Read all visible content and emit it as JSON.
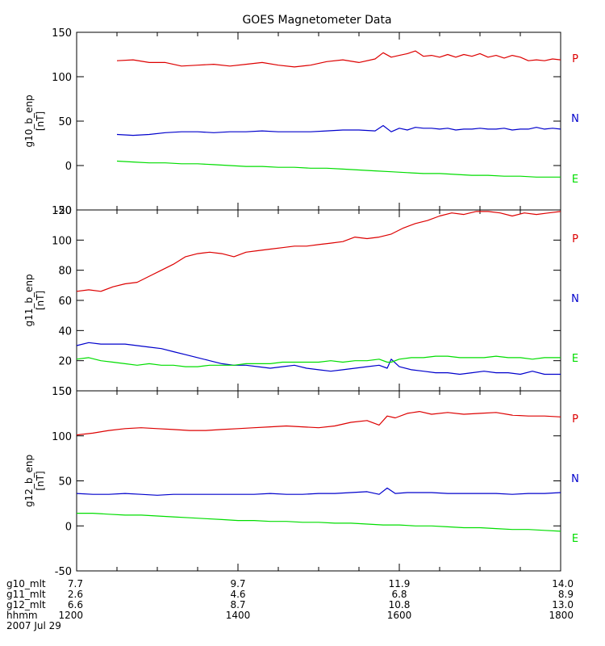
{
  "title": "GOES Magnetometer Data",
  "colors": {
    "P": "#dd0000",
    "N": "#0000cc",
    "E": "#00dd00",
    "axis": "#000000"
  },
  "chart_data": [
    {
      "type": "line",
      "ylabel": "g10_b_enp",
      "yunit": "[nT]",
      "ylim": [
        -50,
        150
      ],
      "yticks": [
        -50,
        0,
        50,
        100,
        150
      ],
      "xlim": [
        1200,
        1800
      ],
      "legend": [
        "P",
        "N",
        "E"
      ],
      "series": [
        {
          "name": "P",
          "color": "#dd0000",
          "x": [
            1250,
            1270,
            1290,
            1310,
            1330,
            1350,
            1370,
            1390,
            1410,
            1430,
            1450,
            1470,
            1490,
            1510,
            1530,
            1550,
            1570,
            1580,
            1590,
            1600,
            1610,
            1620,
            1630,
            1640,
            1650,
            1660,
            1670,
            1680,
            1690,
            1700,
            1710,
            1720,
            1730,
            1740,
            1750,
            1760,
            1770,
            1780,
            1790,
            1800
          ],
          "y": [
            118,
            119,
            116,
            116,
            112,
            113,
            114,
            112,
            114,
            116,
            113,
            111,
            113,
            117,
            119,
            116,
            120,
            127,
            122,
            124,
            126,
            129,
            123,
            124,
            122,
            125,
            122,
            125,
            123,
            126,
            122,
            124,
            121,
            124,
            122,
            118,
            119,
            118,
            120,
            119
          ]
        },
        {
          "name": "N",
          "color": "#0000cc",
          "x": [
            1250,
            1270,
            1290,
            1310,
            1330,
            1350,
            1370,
            1390,
            1410,
            1430,
            1450,
            1470,
            1490,
            1510,
            1530,
            1550,
            1570,
            1580,
            1590,
            1600,
            1610,
            1620,
            1630,
            1640,
            1650,
            1660,
            1670,
            1680,
            1690,
            1700,
            1710,
            1720,
            1730,
            1740,
            1750,
            1760,
            1770,
            1780,
            1790,
            1800
          ],
          "y": [
            35,
            34,
            35,
            37,
            38,
            38,
            37,
            38,
            38,
            39,
            38,
            38,
            38,
            39,
            40,
            40,
            39,
            45,
            38,
            42,
            40,
            43,
            42,
            42,
            41,
            42,
            40,
            41,
            41,
            42,
            41,
            41,
            42,
            40,
            41,
            41,
            43,
            41,
            42,
            41
          ]
        },
        {
          "name": "E",
          "color": "#00dd00",
          "x": [
            1250,
            1270,
            1290,
            1310,
            1330,
            1350,
            1370,
            1390,
            1410,
            1430,
            1450,
            1470,
            1490,
            1510,
            1530,
            1550,
            1570,
            1590,
            1610,
            1630,
            1650,
            1670,
            1690,
            1710,
            1730,
            1750,
            1770,
            1790,
            1800
          ],
          "y": [
            5,
            4,
            3,
            3,
            2,
            2,
            1,
            0,
            -1,
            -1,
            -2,
            -2,
            -3,
            -3,
            -4,
            -5,
            -6,
            -7,
            -8,
            -9,
            -9,
            -10,
            -11,
            -11,
            -12,
            -12,
            -13,
            -13,
            -13
          ]
        }
      ]
    },
    {
      "type": "line",
      "ylabel": "g11_b_enp",
      "yunit": "[nT]",
      "ylim": [
        0,
        120
      ],
      "yticks": [
        0,
        20,
        40,
        60,
        80,
        100,
        120
      ],
      "xlim": [
        1200,
        1800
      ],
      "legend": [
        "P",
        "N",
        "E"
      ],
      "series": [
        {
          "name": "P",
          "color": "#dd0000",
          "x": [
            1200,
            1215,
            1230,
            1245,
            1260,
            1275,
            1290,
            1305,
            1320,
            1335,
            1350,
            1365,
            1380,
            1395,
            1410,
            1425,
            1440,
            1455,
            1470,
            1485,
            1500,
            1515,
            1530,
            1545,
            1560,
            1575,
            1590,
            1605,
            1620,
            1635,
            1650,
            1665,
            1680,
            1695,
            1710,
            1725,
            1740,
            1755,
            1770,
            1785,
            1800
          ],
          "y": [
            66,
            67,
            66,
            69,
            71,
            72,
            76,
            80,
            84,
            89,
            91,
            92,
            91,
            89,
            92,
            93,
            94,
            95,
            96,
            96,
            97,
            98,
            99,
            102,
            101,
            102,
            104,
            108,
            111,
            113,
            116,
            118,
            117,
            119,
            119,
            118,
            116,
            118,
            117,
            118,
            119
          ]
        },
        {
          "name": "N",
          "color": "#0000cc",
          "x": [
            1200,
            1215,
            1230,
            1245,
            1260,
            1275,
            1290,
            1305,
            1320,
            1335,
            1350,
            1365,
            1380,
            1395,
            1410,
            1425,
            1440,
            1455,
            1470,
            1485,
            1500,
            1515,
            1530,
            1545,
            1560,
            1575,
            1585,
            1590,
            1600,
            1615,
            1630,
            1645,
            1660,
            1675,
            1690,
            1705,
            1720,
            1735,
            1750,
            1765,
            1780,
            1800
          ],
          "y": [
            30,
            32,
            31,
            31,
            31,
            30,
            29,
            28,
            26,
            24,
            22,
            20,
            18,
            17,
            17,
            16,
            15,
            16,
            17,
            15,
            14,
            13,
            14,
            15,
            16,
            17,
            15,
            21,
            16,
            14,
            13,
            12,
            12,
            11,
            12,
            13,
            12,
            12,
            11,
            13,
            11,
            11
          ]
        },
        {
          "name": "E",
          "color": "#00dd00",
          "x": [
            1200,
            1215,
            1230,
            1245,
            1260,
            1275,
            1290,
            1305,
            1320,
            1335,
            1350,
            1365,
            1380,
            1395,
            1410,
            1425,
            1440,
            1455,
            1470,
            1485,
            1500,
            1515,
            1530,
            1545,
            1560,
            1575,
            1585,
            1590,
            1600,
            1615,
            1630,
            1645,
            1660,
            1675,
            1690,
            1705,
            1720,
            1735,
            1750,
            1765,
            1780,
            1800
          ],
          "y": [
            21,
            22,
            20,
            19,
            18,
            17,
            18,
            17,
            17,
            16,
            16,
            17,
            17,
            17,
            18,
            18,
            18,
            19,
            19,
            19,
            19,
            20,
            19,
            20,
            20,
            21,
            19,
            19,
            21,
            22,
            22,
            23,
            23,
            22,
            22,
            22,
            23,
            22,
            22,
            21,
            22,
            22
          ]
        }
      ]
    },
    {
      "type": "line",
      "ylabel": "g12_b_enp",
      "yunit": "[nT]",
      "ylim": [
        -50,
        150
      ],
      "yticks": [
        -50,
        0,
        50,
        100,
        150
      ],
      "xlim": [
        1200,
        1800
      ],
      "legend": [
        "P",
        "N",
        "E"
      ],
      "series": [
        {
          "name": "P",
          "color": "#dd0000",
          "x": [
            1200,
            1220,
            1240,
            1260,
            1280,
            1300,
            1320,
            1340,
            1360,
            1380,
            1400,
            1420,
            1440,
            1460,
            1480,
            1500,
            1520,
            1540,
            1560,
            1575,
            1585,
            1595,
            1610,
            1625,
            1640,
            1660,
            1680,
            1700,
            1720,
            1740,
            1760,
            1780,
            1800
          ],
          "y": [
            101,
            103,
            106,
            108,
            109,
            108,
            107,
            106,
            106,
            107,
            108,
            109,
            110,
            111,
            110,
            109,
            111,
            115,
            117,
            112,
            122,
            120,
            125,
            127,
            124,
            126,
            124,
            125,
            126,
            123,
            122,
            122,
            121
          ]
        },
        {
          "name": "N",
          "color": "#0000cc",
          "x": [
            1200,
            1220,
            1240,
            1260,
            1280,
            1300,
            1320,
            1340,
            1360,
            1380,
            1400,
            1420,
            1440,
            1460,
            1480,
            1500,
            1520,
            1540,
            1560,
            1575,
            1585,
            1595,
            1610,
            1625,
            1640,
            1660,
            1680,
            1700,
            1720,
            1740,
            1760,
            1780,
            1800
          ],
          "y": [
            36,
            35,
            35,
            36,
            35,
            34,
            35,
            35,
            35,
            35,
            35,
            35,
            36,
            35,
            35,
            36,
            36,
            37,
            38,
            35,
            42,
            36,
            37,
            37,
            37,
            36,
            36,
            36,
            36,
            35,
            36,
            36,
            37
          ]
        },
        {
          "name": "E",
          "color": "#00dd00",
          "x": [
            1200,
            1220,
            1240,
            1260,
            1280,
            1300,
            1320,
            1340,
            1360,
            1380,
            1400,
            1420,
            1440,
            1460,
            1480,
            1500,
            1520,
            1540,
            1560,
            1580,
            1600,
            1620,
            1640,
            1660,
            1680,
            1700,
            1720,
            1740,
            1760,
            1780,
            1800
          ],
          "y": [
            14,
            14,
            13,
            12,
            12,
            11,
            10,
            9,
            8,
            7,
            6,
            6,
            5,
            5,
            4,
            4,
            3,
            3,
            2,
            1,
            1,
            0,
            0,
            -1,
            -2,
            -2,
            -3,
            -4,
            -4,
            -5,
            -6
          ]
        }
      ]
    }
  ],
  "xaxis": {
    "rows": [
      {
        "label": "g10_mlt",
        "values": [
          "7.7",
          "9.7",
          "11.9",
          "14.0"
        ]
      },
      {
        "label": "g11_mlt",
        "values": [
          "2.6",
          "4.6",
          "6.8",
          "8.9"
        ]
      },
      {
        "label": "g12_mlt",
        "values": [
          "6.6",
          "8.7",
          "10.8",
          "13.0"
        ]
      },
      {
        "label": "hhmm",
        "values": [
          "1200",
          "1400",
          "1600",
          "1800"
        ]
      }
    ],
    "tick_times": [
      1200,
      1400,
      1600,
      1800
    ],
    "date": "2007 Jul 29"
  }
}
